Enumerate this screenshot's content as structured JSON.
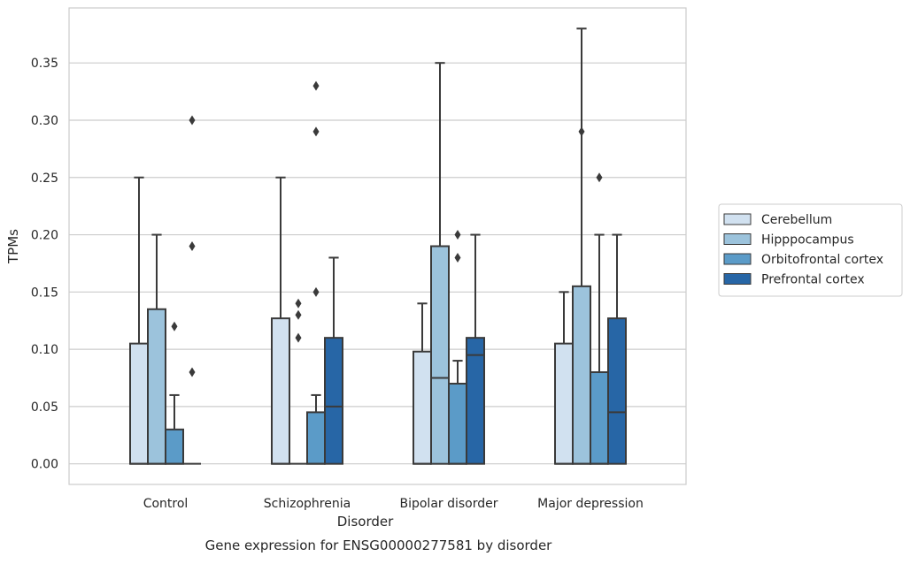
{
  "chart_data": {
    "type": "box",
    "title": "",
    "caption": "Gene expression for ENSG00000277581 by disorder",
    "xlabel": "Disorder",
    "ylabel": "TPMs",
    "ylim": [
      -0.018,
      0.398
    ],
    "yticks": [
      "0.00",
      "0.05",
      "0.10",
      "0.15",
      "0.20",
      "0.25",
      "0.30",
      "0.35"
    ],
    "ytick_values": [
      0,
      0.05,
      0.1,
      0.15,
      0.2,
      0.25,
      0.3,
      0.35
    ],
    "grid": "horizontal",
    "legend_position": "right",
    "categories": [
      "Control",
      "Schizophrenia",
      "Bipolar disorder",
      "Major depression"
    ],
    "series": [
      {
        "name": "Cerebellum",
        "color": "#d1e1f0",
        "boxes": [
          {
            "q1": 0,
            "median": 0,
            "q3": 0.105,
            "whisker_low": 0,
            "whisker_high": 0.25,
            "outliers": []
          },
          {
            "q1": 0,
            "median": 0,
            "q3": 0.127,
            "whisker_low": 0,
            "whisker_high": 0.25,
            "outliers": []
          },
          {
            "q1": 0,
            "median": 0,
            "q3": 0.098,
            "whisker_low": 0,
            "whisker_high": 0.14,
            "outliers": []
          },
          {
            "q1": 0,
            "median": 0,
            "q3": 0.105,
            "whisker_low": 0,
            "whisker_high": 0.15,
            "outliers": []
          }
        ]
      },
      {
        "name": "Hipppocampus",
        "color": "#9cc3dc",
        "boxes": [
          {
            "q1": 0,
            "median": 0,
            "q3": 0.135,
            "whisker_low": 0,
            "whisker_high": 0.2,
            "outliers": []
          },
          {
            "q1": 0,
            "median": 0,
            "q3": 0,
            "whisker_low": 0,
            "whisker_high": 0,
            "outliers": [
              0.11,
              0.13,
              0.14
            ]
          },
          {
            "q1": 0,
            "median": 0.075,
            "q3": 0.19,
            "whisker_low": 0,
            "whisker_high": 0.35,
            "outliers": []
          },
          {
            "q1": 0,
            "median": 0,
            "q3": 0.155,
            "whisker_low": 0,
            "whisker_high": 0.38,
            "outliers": [
              0.29
            ]
          }
        ]
      },
      {
        "name": "Orbitofrontal cortex",
        "color": "#5b9bc8",
        "boxes": [
          {
            "q1": 0,
            "median": 0,
            "q3": 0.03,
            "whisker_low": 0,
            "whisker_high": 0.06,
            "outliers": [
              0.12
            ]
          },
          {
            "q1": 0,
            "median": 0,
            "q3": 0.045,
            "whisker_low": 0,
            "whisker_high": 0.06,
            "outliers": [
              0.15,
              0.29,
              0.33
            ]
          },
          {
            "q1": 0,
            "median": 0,
            "q3": 0.07,
            "whisker_low": 0,
            "whisker_high": 0.09,
            "outliers": [
              0.18,
              0.2
            ]
          },
          {
            "q1": 0,
            "median": 0,
            "q3": 0.08,
            "whisker_low": 0,
            "whisker_high": 0.2,
            "outliers": [
              0.25
            ]
          }
        ]
      },
      {
        "name": "Prefrontal cortex",
        "color": "#2766a6",
        "boxes": [
          {
            "q1": 0,
            "median": 0,
            "q3": 0,
            "whisker_low": 0,
            "whisker_high": 0,
            "outliers": [
              0.08,
              0.19,
              0.3
            ]
          },
          {
            "q1": 0,
            "median": 0.05,
            "q3": 0.11,
            "whisker_low": 0,
            "whisker_high": 0.18,
            "outliers": []
          },
          {
            "q1": 0,
            "median": 0.095,
            "q3": 0.11,
            "whisker_low": 0,
            "whisker_high": 0.2,
            "outliers": []
          },
          {
            "q1": 0,
            "median": 0.045,
            "q3": 0.127,
            "whisker_low": 0,
            "whisker_high": 0.2,
            "outliers": []
          }
        ]
      }
    ]
  }
}
